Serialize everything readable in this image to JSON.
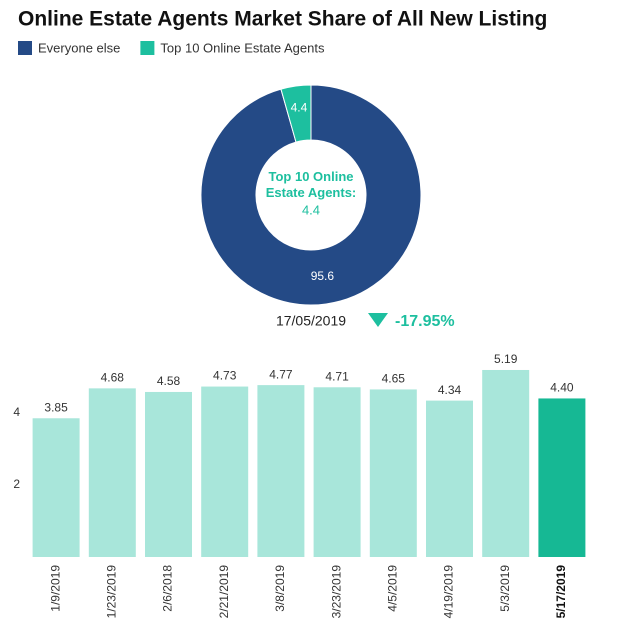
{
  "chart_data": [
    {
      "type": "donut",
      "title": "Online Estate Agents Market Share of All New Listing",
      "series": [
        {
          "name": "Everyone else",
          "color": "#244a86",
          "value": 95.6
        },
        {
          "name": "Top 10 Online Estate Agents",
          "color": "#1dbf9f",
          "value": 4.4
        }
      ],
      "center_label": "Top 10 Online Estate Agents:",
      "date": "17/05/2019",
      "change": "-17.95%"
    },
    {
      "type": "bar",
      "categories": [
        "1/9/2019",
        "1/23/2019",
        "2/6/2018",
        "2/21/2019",
        "3/8/2019",
        "3/23/2019",
        "4/5/2019",
        "4/19/2019",
        "5/3/2019",
        "5/17/2019"
      ],
      "values": [
        3.85,
        4.68,
        4.58,
        4.73,
        4.77,
        4.71,
        4.65,
        4.34,
        5.19,
        4.4
      ],
      "value_labels": [
        "3.85",
        "4.68",
        "4.58",
        "4.73",
        "4.77",
        "4.71",
        "4.65",
        "4.34",
        "5.19",
        "4.40"
      ],
      "color": "#a8e6da",
      "highlight_color": "#16b894",
      "highlight_index": 9,
      "ylim": [
        0,
        5.8
      ],
      "yticks": [
        2,
        4
      ],
      "grid": false
    }
  ]
}
